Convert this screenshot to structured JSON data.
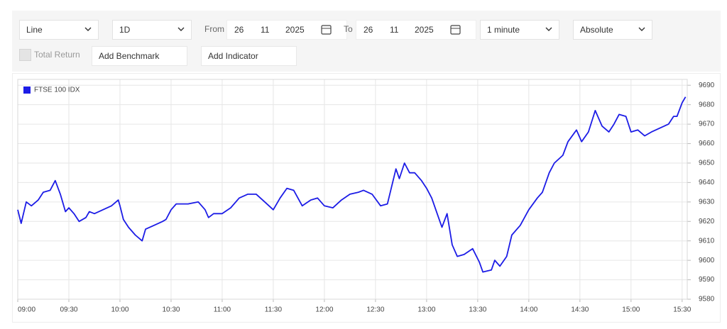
{
  "toolbar": {
    "chart_type": "Line",
    "period": "1D",
    "from_label": "From",
    "from_date": {
      "day": "26",
      "month": "11",
      "year": "2025"
    },
    "to_label": "To",
    "to_date": {
      "day": "26",
      "month": "11",
      "year": "2025"
    },
    "interval": "1 minute",
    "mode": "Absolute",
    "total_return": "Total Return",
    "add_benchmark": "Add Benchmark",
    "add_indicator": "Add Indicator"
  },
  "chart_data": {
    "type": "line",
    "x": [
      "09:00",
      "09:02",
      "09:05",
      "09:08",
      "09:12",
      "09:15",
      "09:19",
      "09:22",
      "09:25",
      "09:28",
      "09:30",
      "09:33",
      "09:36",
      "09:40",
      "09:42",
      "09:45",
      "09:50",
      "09:55",
      "09:59",
      "10:00",
      "10:02",
      "10:05",
      "10:09",
      "10:13",
      "10:15",
      "10:20",
      "10:25",
      "10:27",
      "10:30",
      "10:33",
      "10:40",
      "10:46",
      "10:50",
      "10:52",
      "10:55",
      "11:00",
      "11:05",
      "11:10",
      "11:15",
      "11:20",
      "11:25",
      "11:30",
      "11:34",
      "11:38",
      "11:42",
      "11:47",
      "11:52",
      "11:56",
      "12:00",
      "12:05",
      "12:10",
      "12:15",
      "12:20",
      "12:23",
      "12:28",
      "12:33",
      "12:37",
      "12:42",
      "12:44",
      "12:47",
      "12:50",
      "12:53",
      "12:57",
      "13:00",
      "13:03",
      "13:07",
      "13:09",
      "13:12",
      "13:15",
      "13:18",
      "13:22",
      "13:27",
      "13:31",
      "13:33",
      "13:38",
      "13:40",
      "13:43",
      "13:47",
      "13:50",
      "13:55",
      "14:00",
      "14:05",
      "14:08",
      "14:12",
      "14:15",
      "14:20",
      "14:23",
      "14:28",
      "14:31",
      "14:35",
      "14:39",
      "14:43",
      "14:47",
      "14:50",
      "14:53",
      "14:57",
      "15:00",
      "15:04",
      "15:08",
      "15:12",
      "15:17",
      "15:22",
      "15:25",
      "15:27",
      "15:30",
      "15:32"
    ],
    "series": [
      {
        "name": "FTSE 100 IDX",
        "color": "#1c1ce6",
        "values": [
          9626,
          9619,
          9630,
          9628,
          9631,
          9635,
          9636,
          9641,
          9634,
          9625,
          9627,
          9624,
          9620,
          9622,
          9625,
          9624,
          9626,
          9628,
          9631,
          9628,
          9621,
          9617,
          9613,
          9610,
          9616,
          9618,
          9620,
          9621,
          9626,
          9629,
          9629,
          9630,
          9626,
          9622,
          9624,
          9624,
          9627,
          9632,
          9634,
          9634,
          9630,
          9626,
          9632,
          9637,
          9636,
          9628,
          9631,
          9632,
          9628,
          9627,
          9631,
          9634,
          9635,
          9636,
          9634,
          9628,
          9629,
          9647,
          9642,
          9650,
          9645,
          9645,
          9641,
          9637,
          9632,
          9622,
          9617,
          9624,
          9608,
          9602,
          9603,
          9606,
          9599,
          9594,
          9595,
          9600,
          9597,
          9602,
          9613,
          9618,
          9626,
          9632,
          9635,
          9645,
          9650,
          9654,
          9661,
          9667,
          9661,
          9666,
          9677,
          9669,
          9666,
          9670,
          9675,
          9674,
          9666,
          9667,
          9664,
          9666,
          9668,
          9670,
          9674,
          9674,
          9681,
          9684
        ]
      }
    ],
    "xlim": [
      "09:00",
      "15:33"
    ],
    "xticks": [
      "09:00",
      "09:30",
      "10:00",
      "10:30",
      "11:00",
      "11:30",
      "12:00",
      "12:30",
      "13:00",
      "13:30",
      "14:00",
      "14:30",
      "15:00",
      "15:30"
    ],
    "ylim": [
      9580,
      9693
    ],
    "yticks": [
      9580,
      9590,
      9600,
      9610,
      9620,
      9630,
      9640,
      9650,
      9660,
      9670,
      9680,
      9690
    ],
    "grid": true,
    "legend": "upper-left"
  }
}
